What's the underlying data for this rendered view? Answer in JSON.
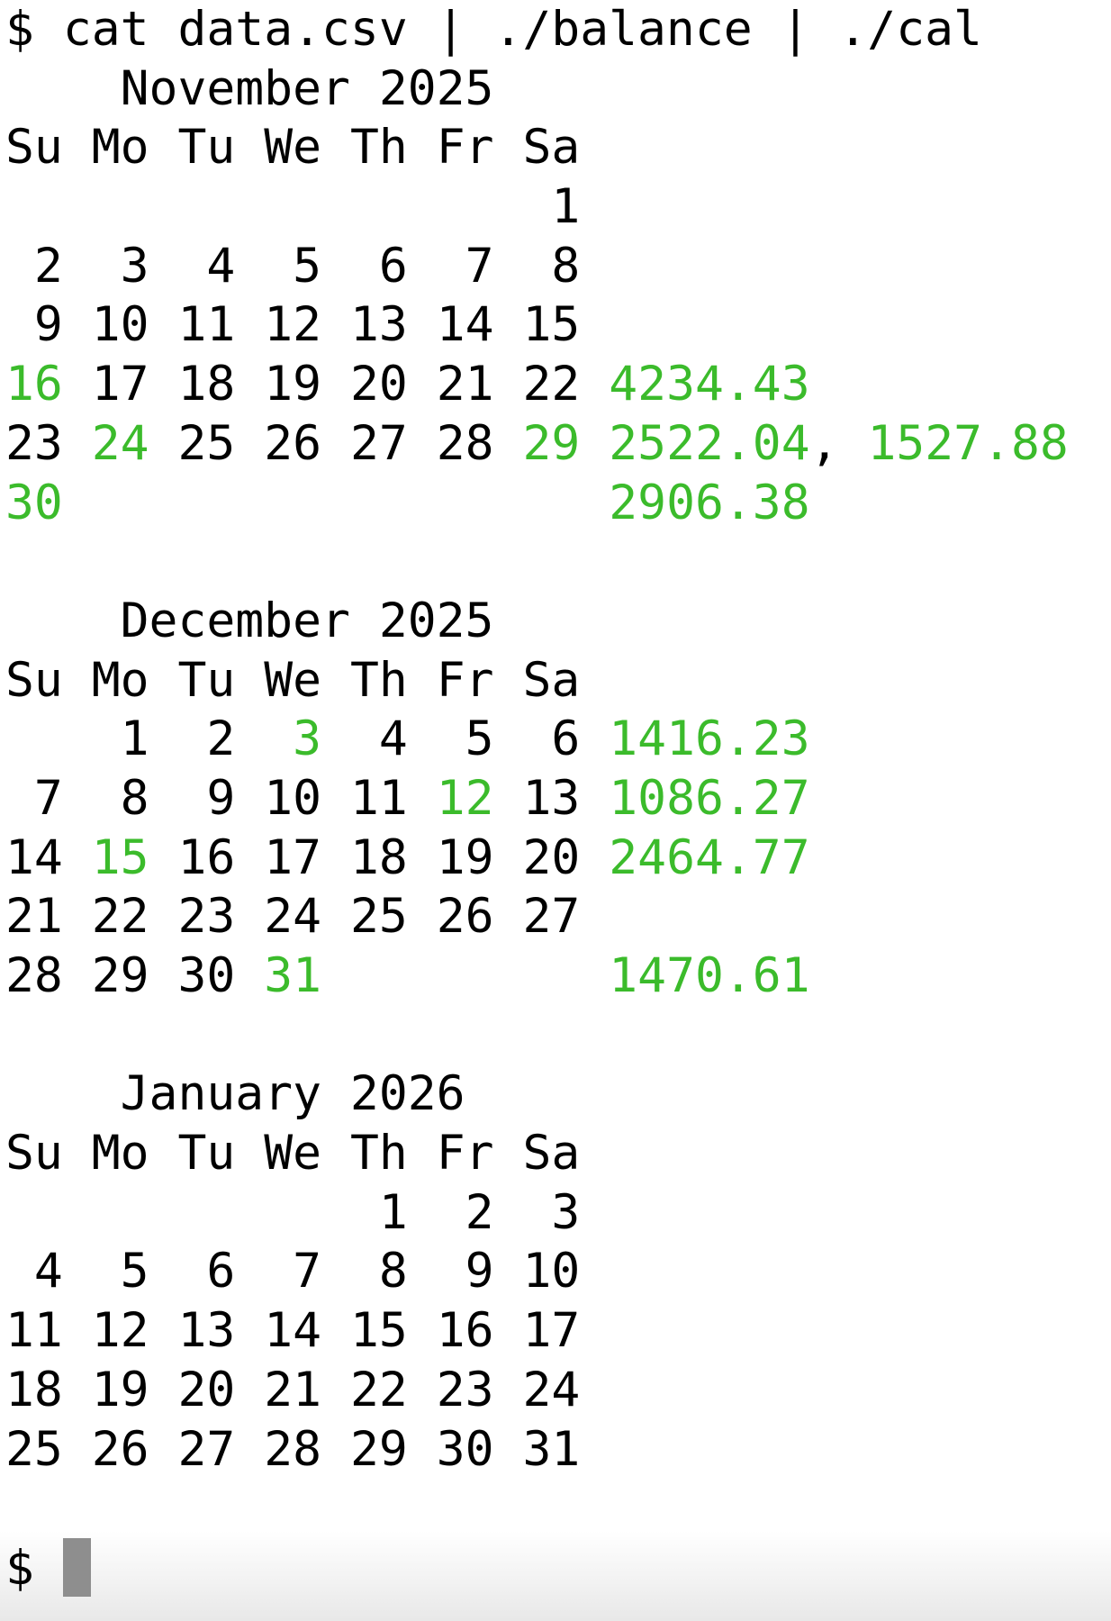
{
  "terminal": {
    "prompt": "$",
    "command": "cat data.csv | ./balance | ./cal",
    "highlight_color": "#3bbb2b",
    "cursor_color": "#8e8e8e"
  },
  "months": [
    {
      "title": "November 2025",
      "headers": [
        "Su",
        "Mo",
        "Tu",
        "We",
        "Th",
        "Fr",
        "Sa"
      ],
      "weeks": [
        {
          "days": [
            null,
            null,
            null,
            null,
            null,
            null,
            1
          ],
          "balances": []
        },
        {
          "days": [
            2,
            3,
            4,
            5,
            6,
            7,
            8
          ],
          "balances": []
        },
        {
          "days": [
            9,
            10,
            11,
            12,
            13,
            14,
            15
          ],
          "balances": []
        },
        {
          "days": [
            16,
            17,
            18,
            19,
            20,
            21,
            22
          ],
          "balances": [
            "4234.43"
          ]
        },
        {
          "days": [
            23,
            24,
            25,
            26,
            27,
            28,
            29
          ],
          "balances": [
            "2522.04",
            "1527.88"
          ]
        },
        {
          "days": [
            30,
            null,
            null,
            null,
            null,
            null,
            null
          ],
          "balances": [
            "2906.38"
          ]
        }
      ],
      "highlighted_days": [
        16,
        24,
        29,
        30
      ]
    },
    {
      "title": "December 2025",
      "headers": [
        "Su",
        "Mo",
        "Tu",
        "We",
        "Th",
        "Fr",
        "Sa"
      ],
      "weeks": [
        {
          "days": [
            null,
            1,
            2,
            3,
            4,
            5,
            6
          ],
          "balances": [
            "1416.23"
          ]
        },
        {
          "days": [
            7,
            8,
            9,
            10,
            11,
            12,
            13
          ],
          "balances": [
            "1086.27"
          ]
        },
        {
          "days": [
            14,
            15,
            16,
            17,
            18,
            19,
            20
          ],
          "balances": [
            "2464.77"
          ]
        },
        {
          "days": [
            21,
            22,
            23,
            24,
            25,
            26,
            27
          ],
          "balances": []
        },
        {
          "days": [
            28,
            29,
            30,
            31,
            null,
            null,
            null
          ],
          "balances": [
            "1470.61"
          ]
        }
      ],
      "highlighted_days": [
        3,
        12,
        15,
        31
      ]
    },
    {
      "title": "January 2026",
      "headers": [
        "Su",
        "Mo",
        "Tu",
        "We",
        "Th",
        "Fr",
        "Sa"
      ],
      "weeks": [
        {
          "days": [
            null,
            null,
            null,
            null,
            1,
            2,
            3
          ],
          "balances": []
        },
        {
          "days": [
            4,
            5,
            6,
            7,
            8,
            9,
            10
          ],
          "balances": []
        },
        {
          "days": [
            11,
            12,
            13,
            14,
            15,
            16,
            17
          ],
          "balances": []
        },
        {
          "days": [
            18,
            19,
            20,
            21,
            22,
            23,
            24
          ],
          "balances": []
        },
        {
          "days": [
            25,
            26,
            27,
            28,
            29,
            30,
            31
          ],
          "balances": []
        }
      ],
      "highlighted_days": []
    }
  ]
}
